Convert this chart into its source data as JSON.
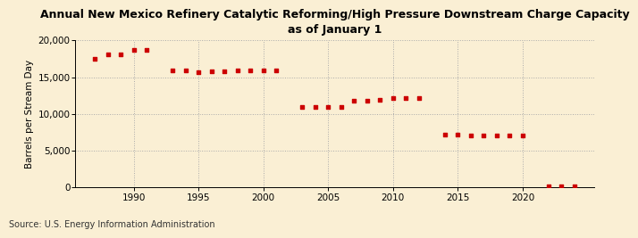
{
  "title": "Annual New Mexico Refinery Catalytic Reforming/High Pressure Downstream Charge Capacity\nas of January 1",
  "ylabel": "Barrels per Stream Day",
  "source": "Source: U.S. Energy Information Administration",
  "background_color": "#faefd4",
  "marker_color": "#cc0000",
  "years": [
    1987,
    1988,
    1989,
    1990,
    1991,
    1993,
    1994,
    1995,
    1996,
    1997,
    1998,
    1999,
    2000,
    2001,
    2003,
    2004,
    2005,
    2006,
    2007,
    2008,
    2009,
    2010,
    2011,
    2012,
    2014,
    2015,
    2016,
    2017,
    2018,
    2019,
    2020,
    2022,
    2023,
    2024
  ],
  "values": [
    17500,
    18100,
    18100,
    18700,
    18700,
    15900,
    15900,
    15700,
    15800,
    15800,
    15900,
    15900,
    15900,
    15900,
    10900,
    11000,
    11000,
    10900,
    11800,
    11800,
    11900,
    12200,
    12200,
    12200,
    7200,
    7200,
    7100,
    7100,
    7100,
    7100,
    7100,
    100,
    100,
    100
  ],
  "xlim": [
    1985.5,
    2025.5
  ],
  "ylim": [
    0,
    20000
  ],
  "yticks": [
    0,
    5000,
    10000,
    15000,
    20000
  ],
  "xticks": [
    1990,
    1995,
    2000,
    2005,
    2010,
    2015,
    2020
  ],
  "title_fontsize": 9,
  "ylabel_fontsize": 7.5,
  "tick_fontsize": 7.5,
  "source_fontsize": 7
}
